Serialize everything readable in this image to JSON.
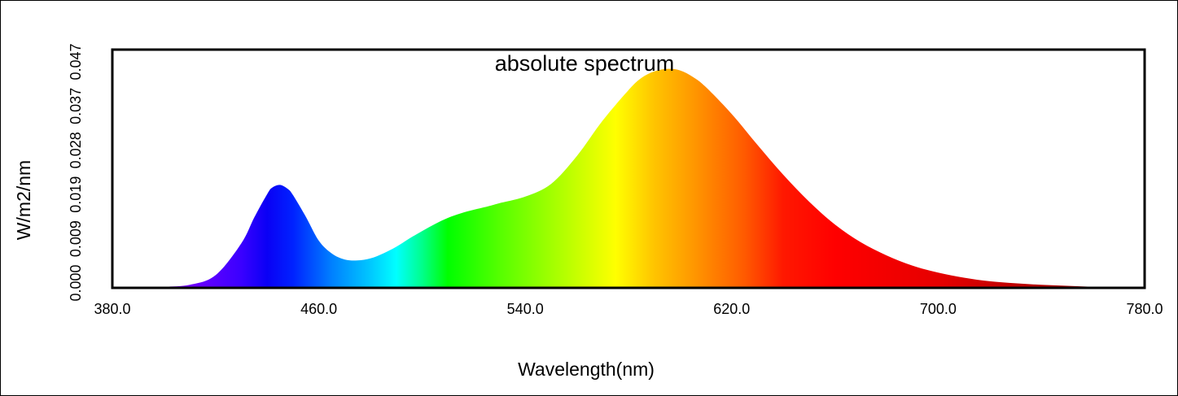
{
  "chart_data": {
    "type": "area",
    "title": "absolute spectrum",
    "xlabel": "Wavelength(nm)",
    "ylabel": "W/m2/nm",
    "xlim": [
      380,
      780
    ],
    "ylim": [
      0,
      0.047
    ],
    "x_ticks": [
      "380.0",
      "460.0",
      "540.0",
      "620.0",
      "700.0",
      "780.0"
    ],
    "y_ticks": [
      "0.000",
      "0.009",
      "0.019",
      "0.028",
      "0.037",
      "0.047"
    ],
    "fill": "visible-spectrum color gradient",
    "grid": false,
    "legend": "none",
    "series": [
      {
        "x": [
          380,
          390,
          400,
          410,
          420,
          430,
          435,
          440,
          442,
          445,
          448,
          450,
          455,
          460,
          465,
          470,
          475,
          480,
          485,
          490,
          495,
          500,
          505,
          510,
          515,
          520,
          525,
          530,
          540,
          550,
          560,
          570,
          580,
          585,
          590,
          595,
          600,
          605,
          610,
          620,
          630,
          640,
          650,
          660,
          670,
          680,
          690,
          700,
          710,
          720,
          730,
          740,
          750,
          760,
          770,
          780
        ],
        "y": [
          0.0001,
          0.0001,
          0.0002,
          0.0006,
          0.0025,
          0.0088,
          0.0139,
          0.0185,
          0.0198,
          0.0203,
          0.0195,
          0.0183,
          0.014,
          0.0093,
          0.0068,
          0.0056,
          0.0054,
          0.0058,
          0.0068,
          0.0081,
          0.0097,
          0.0112,
          0.0126,
          0.0138,
          0.0147,
          0.0154,
          0.016,
          0.0167,
          0.018,
          0.0205,
          0.026,
          0.033,
          0.039,
          0.0414,
          0.0427,
          0.0432,
          0.0429,
          0.0416,
          0.0396,
          0.0343,
          0.0282,
          0.0223,
          0.017,
          0.0125,
          0.009,
          0.0064,
          0.0044,
          0.003,
          0.002,
          0.0013,
          0.0009,
          0.0006,
          0.0004,
          0.0002,
          0.0001,
          0.0001
        ]
      }
    ]
  }
}
